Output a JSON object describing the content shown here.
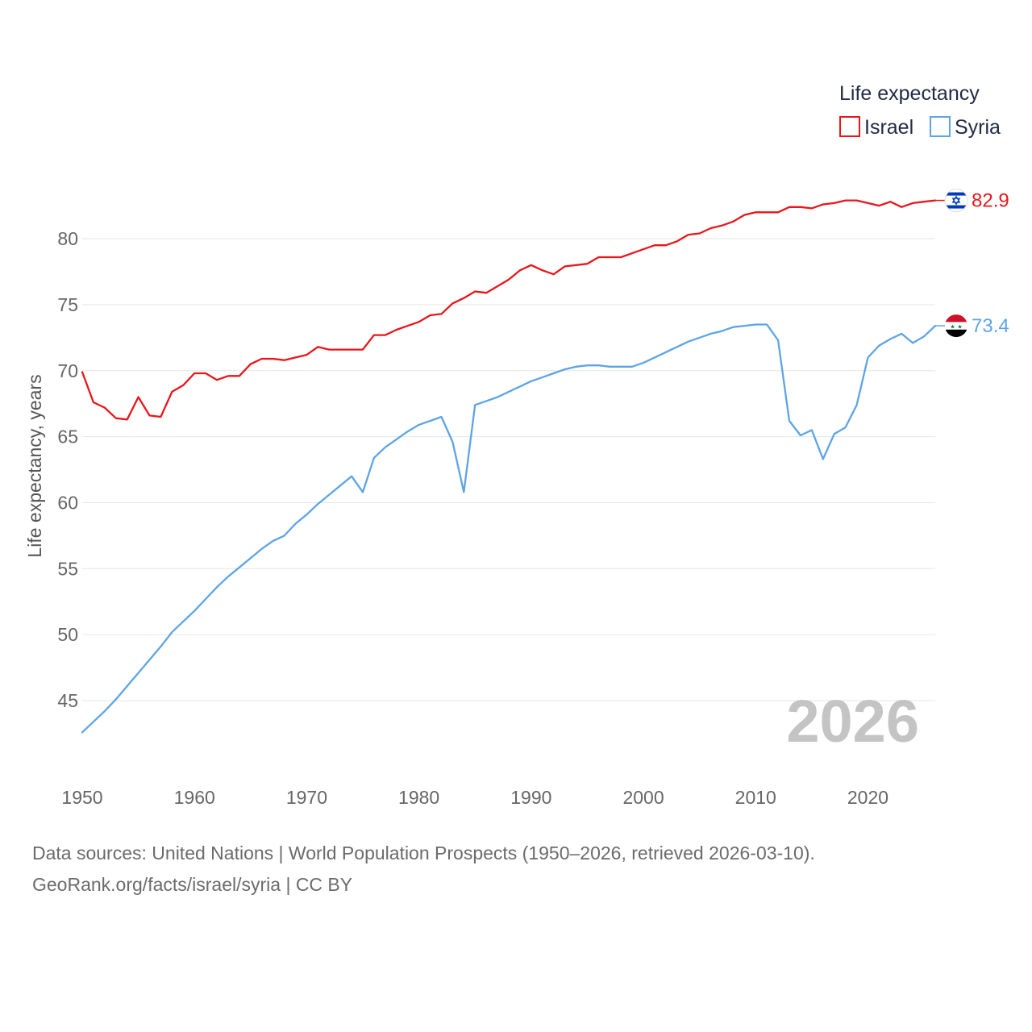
{
  "colors": {
    "israel": "#e8161b",
    "syria": "#5da4e6",
    "grid": "#e6e6e6"
  },
  "chart_data": {
    "type": "line",
    "title": "",
    "legend_title": "Life expectancy",
    "legend_placement": "top-right",
    "xlabel": "",
    "ylabel": "Life expectancy, years",
    "xlim": [
      1950,
      2026
    ],
    "ylim": [
      41,
      86
    ],
    "x_ticks": [
      1950,
      1960,
      1970,
      1980,
      1990,
      2000,
      2010,
      2020
    ],
    "y_ticks": [
      45,
      50,
      55,
      60,
      65,
      70,
      75,
      80
    ],
    "grid": true,
    "year_label": "2026",
    "x": [
      1950,
      1951,
      1952,
      1953,
      1954,
      1955,
      1956,
      1957,
      1958,
      1959,
      1960,
      1961,
      1962,
      1963,
      1964,
      1965,
      1966,
      1967,
      1968,
      1969,
      1970,
      1971,
      1972,
      1973,
      1974,
      1975,
      1976,
      1977,
      1978,
      1979,
      1980,
      1981,
      1982,
      1983,
      1984,
      1985,
      1986,
      1987,
      1988,
      1989,
      1990,
      1991,
      1992,
      1993,
      1994,
      1995,
      1996,
      1997,
      1998,
      1999,
      2000,
      2001,
      2002,
      2003,
      2004,
      2005,
      2006,
      2007,
      2008,
      2009,
      2010,
      2011,
      2012,
      2013,
      2014,
      2015,
      2016,
      2017,
      2018,
      2019,
      2020,
      2021,
      2022,
      2023,
      2024,
      2025,
      2026
    ],
    "series": [
      {
        "name": "Israel",
        "color": "#e8161b",
        "end_label": "82.9",
        "flag": "israel-flag-icon",
        "values": [
          69.9,
          67.6,
          67.2,
          66.4,
          66.3,
          68.0,
          66.6,
          66.5,
          68.4,
          68.9,
          69.8,
          69.8,
          69.3,
          69.6,
          69.6,
          70.5,
          70.9,
          70.9,
          70.8,
          71.0,
          71.2,
          71.8,
          71.6,
          71.6,
          71.6,
          71.6,
          72.7,
          72.7,
          73.1,
          73.4,
          73.7,
          74.2,
          74.3,
          75.1,
          75.5,
          76.0,
          75.9,
          76.4,
          76.9,
          77.6,
          78.0,
          77.6,
          77.3,
          77.9,
          78.0,
          78.1,
          78.6,
          78.6,
          78.6,
          78.9,
          79.2,
          79.5,
          79.5,
          79.8,
          80.3,
          80.4,
          80.8,
          81.0,
          81.3,
          81.8,
          82.0,
          82.0,
          82.0,
          82.4,
          82.4,
          82.3,
          82.6,
          82.7,
          82.9,
          82.9,
          82.7,
          82.5,
          82.8,
          82.4,
          82.7,
          82.8,
          82.9
        ]
      },
      {
        "name": "Syria",
        "color": "#5da4e6",
        "end_label": "73.4",
        "flag": "syria-flag-icon",
        "values": [
          42.6,
          43.4,
          44.2,
          45.1,
          46.1,
          47.1,
          48.1,
          49.1,
          50.2,
          51.0,
          51.8,
          52.7,
          53.6,
          54.4,
          55.1,
          55.8,
          56.5,
          57.1,
          57.5,
          58.4,
          59.1,
          59.9,
          60.6,
          61.3,
          62.0,
          60.8,
          63.4,
          64.2,
          64.8,
          65.4,
          65.9,
          66.2,
          66.5,
          64.6,
          60.8,
          67.4,
          67.7,
          68.0,
          68.4,
          68.8,
          69.2,
          69.5,
          69.8,
          70.1,
          70.3,
          70.4,
          70.4,
          70.3,
          70.3,
          70.3,
          70.6,
          71.0,
          71.4,
          71.8,
          72.2,
          72.5,
          72.8,
          73.0,
          73.3,
          73.4,
          73.5,
          73.5,
          72.3,
          66.2,
          65.1,
          65.5,
          63.3,
          65.2,
          65.7,
          67.4,
          71.0,
          71.9,
          72.4,
          72.8,
          72.1,
          72.6,
          73.4
        ]
      }
    ]
  },
  "footer": {
    "line1": "Data sources: United Nations | World Population Prospects (1950–2026, retrieved 2026-03-10).",
    "line2": "GeoRank.org/facts/israel/syria | CC BY"
  }
}
